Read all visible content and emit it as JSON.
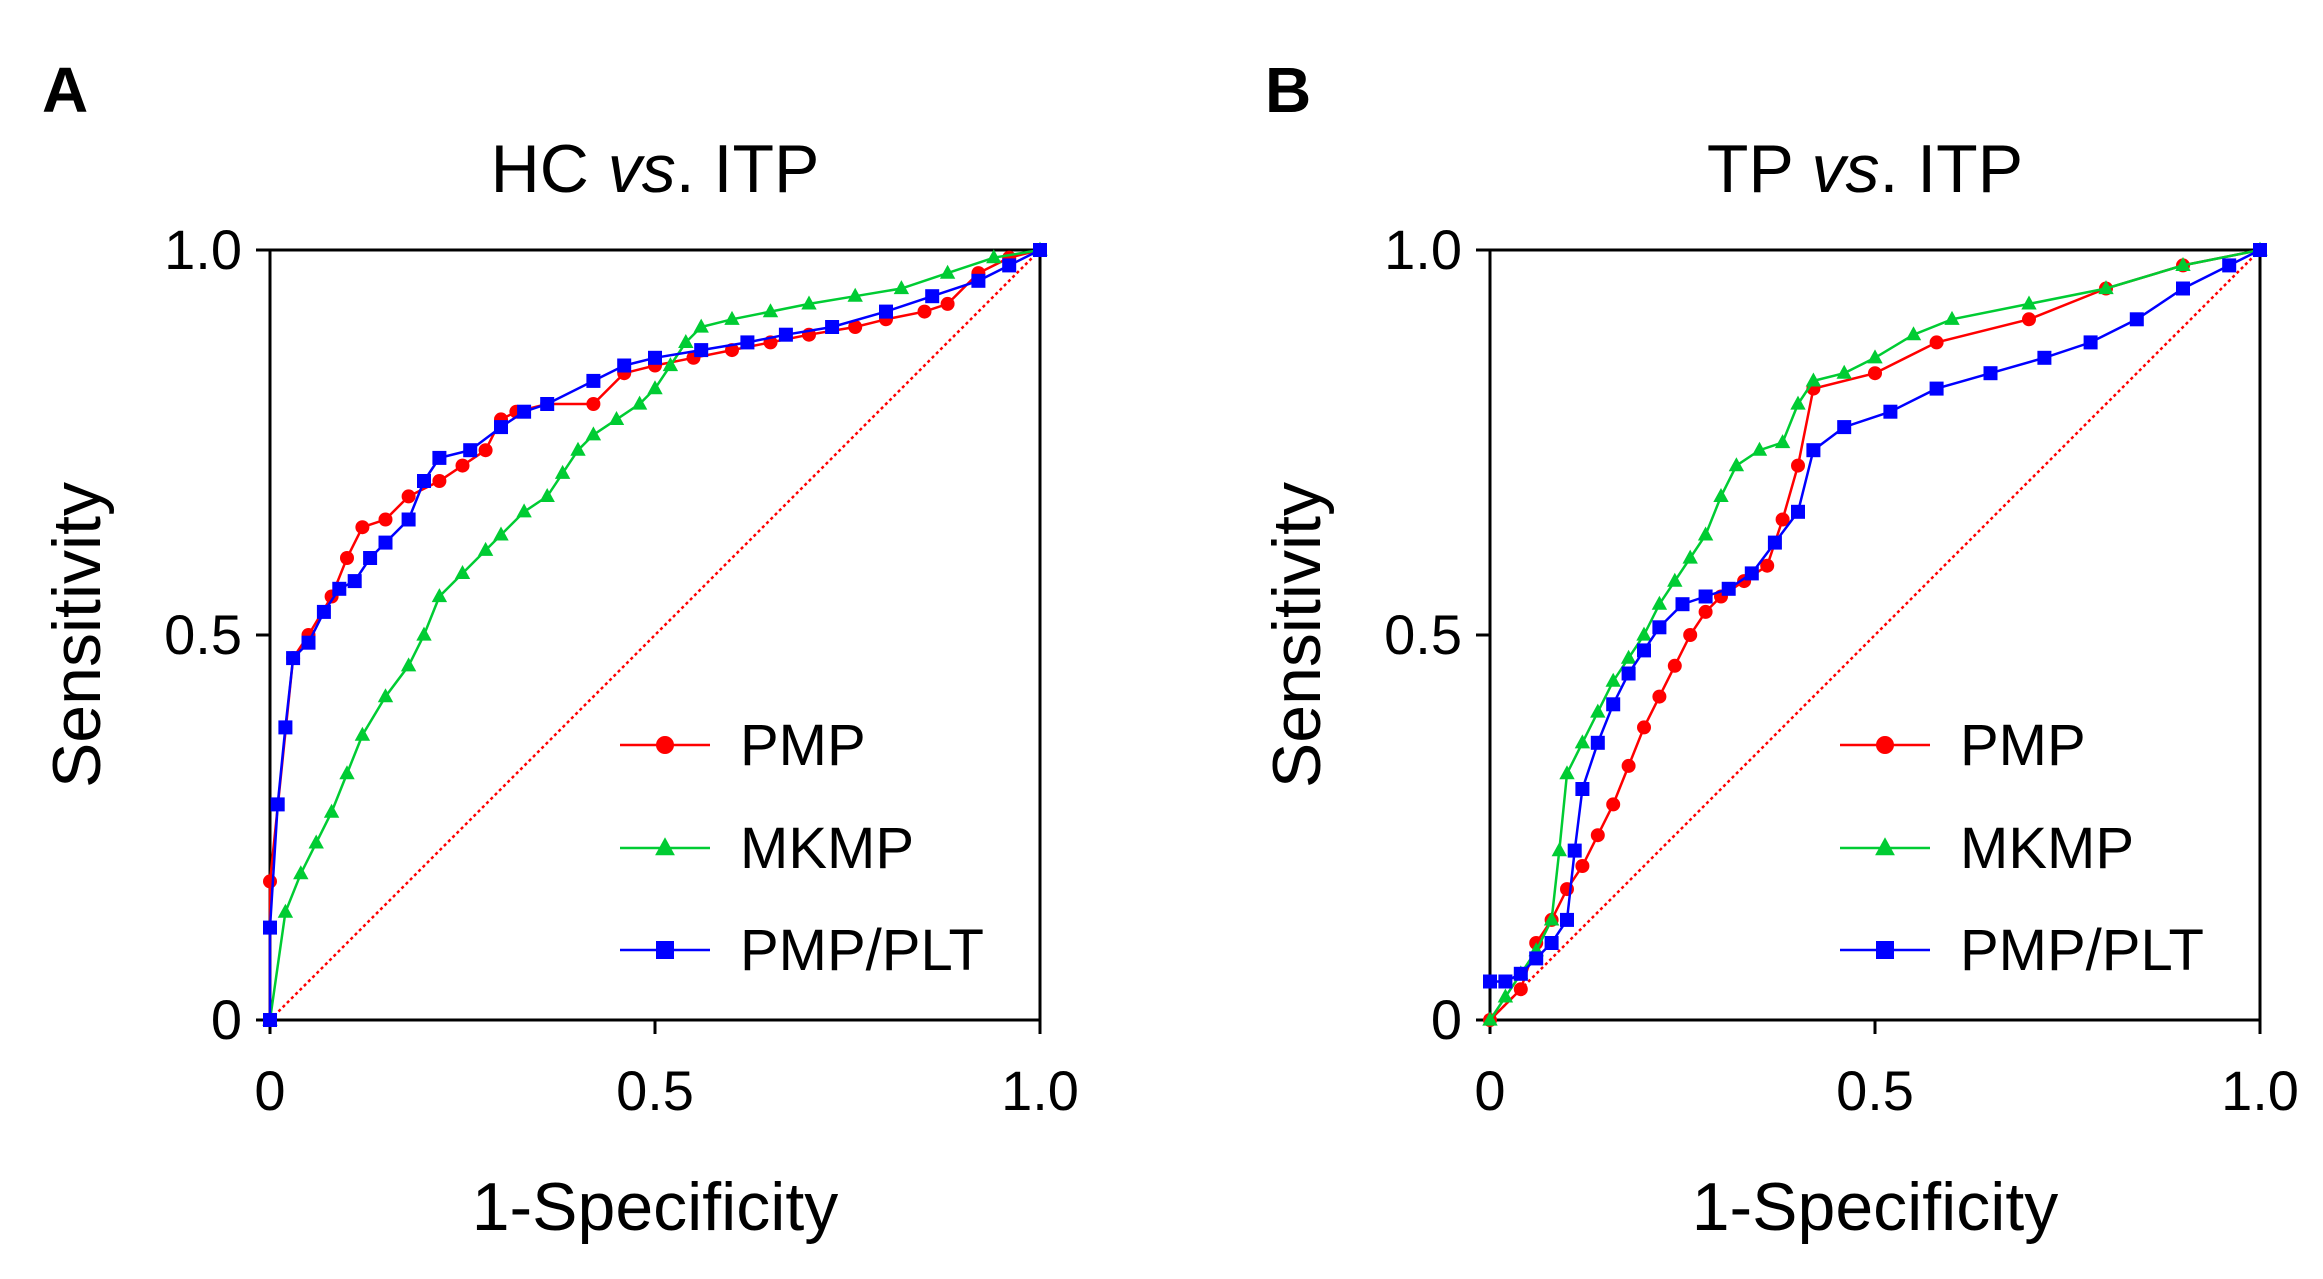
{
  "chart_data": [
    {
      "type": "line",
      "panel_label": "A",
      "title_parts": [
        "HC ",
        "vs",
        ". ITP"
      ],
      "xlabel": "1-Specificity",
      "ylabel": "Sensitivity",
      "xlim": [
        0,
        1.0
      ],
      "ylim": [
        0,
        1.0
      ],
      "x_ticks": [
        0,
        0.5,
        1.0
      ],
      "y_ticks": [
        0,
        0.5,
        1.0
      ],
      "x_tick_labels": [
        "0",
        "0.5",
        "1.0"
      ],
      "y_tick_labels": [
        "0",
        "0.5",
        "1.0"
      ],
      "legend_position": "bottom-right",
      "reference_line": {
        "name": "chance",
        "color": "#ff0000",
        "style": "dotted",
        "x": [
          0,
          1
        ],
        "y": [
          0,
          1
        ]
      },
      "series": [
        {
          "name": "PMP",
          "color": "#ff0000",
          "marker": "circle",
          "x": [
            0.0,
            0.0,
            0.03,
            0.05,
            0.08,
            0.1,
            0.12,
            0.15,
            0.18,
            0.22,
            0.25,
            0.28,
            0.3,
            0.32,
            0.36,
            0.42,
            0.46,
            0.5,
            0.55,
            0.6,
            0.65,
            0.7,
            0.76,
            0.8,
            0.85,
            0.88,
            0.92,
            0.96,
            1.0
          ],
          "y": [
            0.0,
            0.18,
            0.47,
            0.5,
            0.55,
            0.6,
            0.64,
            0.65,
            0.68,
            0.7,
            0.72,
            0.74,
            0.78,
            0.79,
            0.8,
            0.8,
            0.84,
            0.85,
            0.86,
            0.87,
            0.88,
            0.89,
            0.9,
            0.91,
            0.92,
            0.93,
            0.97,
            0.99,
            1.0
          ]
        },
        {
          "name": "MKMP",
          "color": "#00cc33",
          "marker": "triangle",
          "x": [
            0.0,
            0.02,
            0.04,
            0.06,
            0.08,
            0.1,
            0.12,
            0.15,
            0.18,
            0.2,
            0.22,
            0.25,
            0.28,
            0.3,
            0.33,
            0.36,
            0.38,
            0.4,
            0.42,
            0.45,
            0.48,
            0.5,
            0.52,
            0.54,
            0.56,
            0.6,
            0.65,
            0.7,
            0.76,
            0.82,
            0.88,
            0.94,
            1.0
          ],
          "y": [
            0.0,
            0.14,
            0.19,
            0.23,
            0.27,
            0.32,
            0.37,
            0.42,
            0.46,
            0.5,
            0.55,
            0.58,
            0.61,
            0.63,
            0.66,
            0.68,
            0.71,
            0.74,
            0.76,
            0.78,
            0.8,
            0.82,
            0.85,
            0.88,
            0.9,
            0.91,
            0.92,
            0.93,
            0.94,
            0.95,
            0.97,
            0.99,
            1.0
          ]
        },
        {
          "name": "PMP/PLT",
          "color": "#0000ff",
          "marker": "square",
          "x": [
            0.0,
            0.0,
            0.01,
            0.02,
            0.03,
            0.05,
            0.07,
            0.09,
            0.11,
            0.13,
            0.15,
            0.18,
            0.2,
            0.22,
            0.26,
            0.3,
            0.33,
            0.36,
            0.42,
            0.46,
            0.5,
            0.56,
            0.62,
            0.67,
            0.73,
            0.8,
            0.86,
            0.92,
            0.96,
            1.0
          ],
          "y": [
            0.0,
            0.12,
            0.28,
            0.38,
            0.47,
            0.49,
            0.53,
            0.56,
            0.57,
            0.6,
            0.62,
            0.65,
            0.7,
            0.73,
            0.74,
            0.77,
            0.79,
            0.8,
            0.83,
            0.85,
            0.86,
            0.87,
            0.88,
            0.89,
            0.9,
            0.92,
            0.94,
            0.96,
            0.98,
            1.0
          ]
        }
      ]
    },
    {
      "type": "line",
      "panel_label": "B",
      "title_parts": [
        "TP ",
        "vs",
        ". ITP"
      ],
      "xlabel": "1-Specificity",
      "ylabel": "Sensitivity",
      "xlim": [
        0,
        1.0
      ],
      "ylim": [
        0,
        1.0
      ],
      "x_ticks": [
        0,
        0.5,
        1.0
      ],
      "y_ticks": [
        0,
        0.5,
        1.0
      ],
      "x_tick_labels": [
        "0",
        "0.5",
        "1.0"
      ],
      "y_tick_labels": [
        "0",
        "0.5",
        "1.0"
      ],
      "legend_position": "bottom-right",
      "reference_line": {
        "name": "chance",
        "color": "#ff0000",
        "style": "dotted",
        "x": [
          0,
          1
        ],
        "y": [
          0,
          1
        ]
      },
      "series": [
        {
          "name": "PMP",
          "color": "#ff0000",
          "marker": "circle",
          "x": [
            0.0,
            0.04,
            0.06,
            0.08,
            0.1,
            0.12,
            0.14,
            0.16,
            0.18,
            0.2,
            0.22,
            0.24,
            0.26,
            0.28,
            0.3,
            0.33,
            0.36,
            0.38,
            0.4,
            0.42,
            0.5,
            0.58,
            0.7,
            0.8,
            0.9,
            1.0
          ],
          "y": [
            0.0,
            0.04,
            0.1,
            0.13,
            0.17,
            0.2,
            0.24,
            0.28,
            0.33,
            0.38,
            0.42,
            0.46,
            0.5,
            0.53,
            0.55,
            0.57,
            0.59,
            0.65,
            0.72,
            0.82,
            0.84,
            0.88,
            0.91,
            0.95,
            0.98,
            1.0
          ]
        },
        {
          "name": "MKMP",
          "color": "#00cc33",
          "marker": "triangle",
          "x": [
            0.0,
            0.02,
            0.04,
            0.06,
            0.08,
            0.09,
            0.1,
            0.12,
            0.14,
            0.16,
            0.18,
            0.2,
            0.22,
            0.24,
            0.26,
            0.28,
            0.3,
            0.32,
            0.35,
            0.38,
            0.4,
            0.42,
            0.46,
            0.5,
            0.55,
            0.6,
            0.7,
            0.8,
            0.9,
            1.0
          ],
          "y": [
            0.0,
            0.03,
            0.06,
            0.09,
            0.13,
            0.22,
            0.32,
            0.36,
            0.4,
            0.44,
            0.47,
            0.5,
            0.54,
            0.57,
            0.6,
            0.63,
            0.68,
            0.72,
            0.74,
            0.75,
            0.8,
            0.83,
            0.84,
            0.86,
            0.89,
            0.91,
            0.93,
            0.95,
            0.98,
            1.0
          ]
        },
        {
          "name": "PMP/PLT",
          "color": "#0000ff",
          "marker": "square",
          "x": [
            0.0,
            0.02,
            0.04,
            0.06,
            0.08,
            0.1,
            0.11,
            0.12,
            0.14,
            0.16,
            0.18,
            0.2,
            0.22,
            0.25,
            0.28,
            0.31,
            0.34,
            0.37,
            0.4,
            0.42,
            0.46,
            0.52,
            0.58,
            0.65,
            0.72,
            0.78,
            0.84,
            0.9,
            0.96,
            1.0
          ],
          "y": [
            0.05,
            0.05,
            0.06,
            0.08,
            0.1,
            0.13,
            0.22,
            0.3,
            0.36,
            0.41,
            0.45,
            0.48,
            0.51,
            0.54,
            0.55,
            0.56,
            0.58,
            0.62,
            0.66,
            0.74,
            0.77,
            0.79,
            0.82,
            0.84,
            0.86,
            0.88,
            0.91,
            0.95,
            0.98,
            1.0
          ]
        }
      ]
    }
  ]
}
